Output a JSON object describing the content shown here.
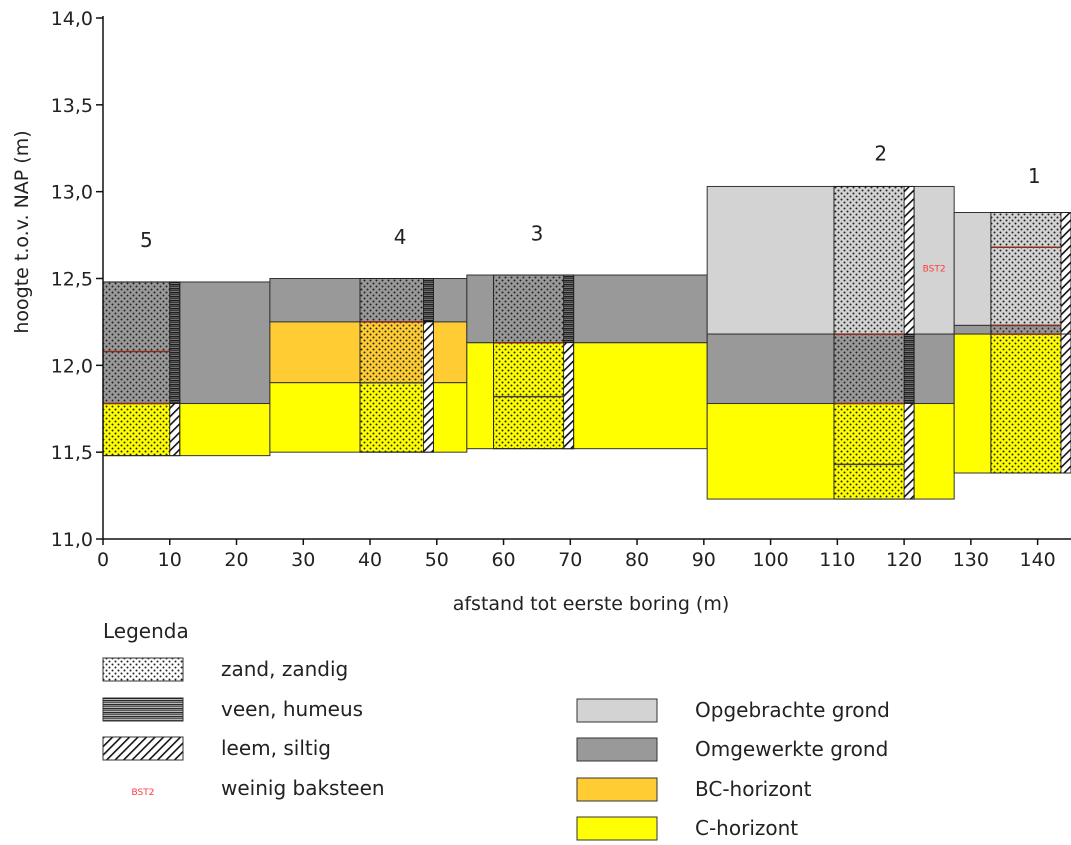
{
  "chart_data": {
    "type": "cross-section",
    "xlabel": "afstand tot eerste boring (m)",
    "ylabel": "hoogte t.o.v. NAP (m)",
    "xlim": [
      0,
      145
    ],
    "ylim": [
      11.0,
      14.0
    ],
    "x_ticks": [
      0,
      10,
      20,
      30,
      40,
      50,
      60,
      70,
      80,
      90,
      100,
      110,
      120,
      130,
      140
    ],
    "y_ticks": [
      "11,0",
      "11,5",
      "12,0",
      "12,5",
      "13,0",
      "13,5",
      "14,0"
    ],
    "y_tick_values": [
      11.0,
      11.5,
      12.0,
      12.5,
      13.0,
      13.5,
      14.0
    ],
    "colors": {
      "Opgebrachte grond": "#d3d3d3",
      "Omgewerkte grond": "#999999",
      "BC-horizont": "#ffcc33",
      "C-horizont": "#ffff00"
    },
    "units": [
      {
        "x0": 0,
        "x1": 25,
        "top": 12.48,
        "bottom": 11.78,
        "unit": "Omgewerkte grond"
      },
      {
        "x0": 0,
        "x1": 25,
        "top": 11.78,
        "bottom": 11.48,
        "unit": "C-horizont"
      },
      {
        "x0": 25,
        "x1": 54.5,
        "top": 12.5,
        "bottom": 12.25,
        "unit": "Omgewerkte grond"
      },
      {
        "x0": 25,
        "x1": 54.5,
        "top": 12.25,
        "bottom": 11.9,
        "unit": "BC-horizont"
      },
      {
        "x0": 25,
        "x1": 54.5,
        "top": 11.9,
        "bottom": 11.5,
        "unit": "C-horizont"
      },
      {
        "x0": 54.5,
        "x1": 90.5,
        "top": 12.52,
        "bottom": 12.13,
        "unit": "Omgewerkte grond"
      },
      {
        "x0": 54.5,
        "x1": 90.5,
        "top": 12.13,
        "bottom": 11.52,
        "unit": "C-horizont"
      },
      {
        "x0": 90.5,
        "x1": 127.5,
        "top": 13.03,
        "bottom": 12.18,
        "unit": "Opgebrachte grond"
      },
      {
        "x0": 90.5,
        "x1": 127.5,
        "top": 12.18,
        "bottom": 11.78,
        "unit": "Omgewerkte grond"
      },
      {
        "x0": 90.5,
        "x1": 127.5,
        "top": 11.78,
        "bottom": 11.23,
        "unit": "C-horizont"
      },
      {
        "x0": 127.5,
        "x1": 145,
        "top": 12.88,
        "bottom": 12.23,
        "unit": "Opgebrachte grond"
      },
      {
        "x0": 127.5,
        "x1": 145,
        "top": 12.23,
        "bottom": 12.18,
        "unit": "Omgewerkte grond"
      },
      {
        "x0": 127.5,
        "x1": 145,
        "top": 12.18,
        "bottom": 11.38,
        "unit": "C-horizont"
      }
    ],
    "borings": [
      {
        "label": "5",
        "x0": 0,
        "x1": 11.5,
        "top": 12.48,
        "bottom": 11.48,
        "hatch_type": "veen",
        "label_x": 6.5,
        "label_y": 12.68,
        "dividers": [
          {
            "y": 12.08,
            "color": "#8b2b1d"
          },
          {
            "y": 11.78,
            "color": "#8b2b1d"
          }
        ],
        "hatch_segments": [
          {
            "top": 12.48,
            "bottom": 11.78,
            "type": "veen"
          },
          {
            "top": 11.78,
            "bottom": 11.48,
            "type": "leem"
          }
        ]
      },
      {
        "label": "4",
        "x0": 38.5,
        "x1": 49.5,
        "top": 12.5,
        "bottom": 11.5,
        "hatch_type": "veen",
        "label_x": 44.5,
        "label_y": 12.7,
        "dividers": [
          {
            "y": 12.25,
            "color": "#8b2b1d"
          },
          {
            "y": 11.9,
            "color": "#444444"
          }
        ],
        "hatch_segments": [
          {
            "top": 12.5,
            "bottom": 12.25,
            "type": "veen"
          },
          {
            "top": 12.25,
            "bottom": 11.5,
            "type": "leem"
          }
        ]
      },
      {
        "label": "3",
        "x0": 58.5,
        "x1": 70.5,
        "top": 12.52,
        "bottom": 11.52,
        "hatch_type": "veen",
        "label_x": 65,
        "label_y": 12.72,
        "dividers": [
          {
            "y": 12.13,
            "color": "#8b2b1d"
          },
          {
            "y": 11.82,
            "color": "#444444"
          }
        ],
        "hatch_segments": [
          {
            "top": 12.52,
            "bottom": 12.13,
            "type": "veen"
          },
          {
            "top": 12.13,
            "bottom": 11.52,
            "type": "leem"
          }
        ]
      },
      {
        "label": "2",
        "x0": 109.5,
        "x1": 121.5,
        "top": 13.03,
        "bottom": 11.23,
        "hatch_type": "veen",
        "label_x": 116.5,
        "label_y": 13.18,
        "dividers": [
          {
            "y": 12.18,
            "color": "#8b2b1d"
          },
          {
            "y": 11.78,
            "color": "#8b2b1d"
          },
          {
            "y": 11.43,
            "color": "#444444"
          }
        ],
        "hatch_segments": [
          {
            "top": 13.03,
            "bottom": 12.18,
            "type": "leem"
          },
          {
            "top": 12.18,
            "bottom": 11.78,
            "type": "veen"
          },
          {
            "top": 11.78,
            "bottom": 11.23,
            "type": "leem"
          }
        ]
      },
      {
        "label": "1",
        "x0": 133,
        "x1": 145,
        "top": 12.88,
        "bottom": 11.38,
        "hatch_type": "veen",
        "label_x": 139.5,
        "label_y": 13.05,
        "dividers": [
          {
            "y": 12.68,
            "color": "#8b2b1d"
          },
          {
            "y": 12.23,
            "color": "#8b2b1d"
          },
          {
            "y": 12.18,
            "color": "#8b2b1d"
          }
        ],
        "hatch_segments": [
          {
            "top": 12.88,
            "bottom": 12.18,
            "type": "leem"
          },
          {
            "top": 12.18,
            "bottom": 11.38,
            "type": "leem"
          }
        ]
      }
    ],
    "annotations": [
      {
        "text": "BST2",
        "x": 124.5,
        "y": 12.54,
        "color": "#ff3b3b",
        "meaning": "weinig baksteen"
      }
    ]
  },
  "legend": {
    "title": "Legenda",
    "pattern_items": [
      {
        "label": "zand, zandig",
        "pattern": "zand"
      },
      {
        "label": "veen, humeus",
        "pattern": "veen"
      },
      {
        "label": "leem, siltig",
        "pattern": "leem"
      },
      {
        "label": "weinig baksteen",
        "pattern": "bst",
        "symbol_text": "BST2"
      }
    ],
    "color_items": [
      {
        "label": "Opgebrachte grond",
        "color": "#d3d3d3"
      },
      {
        "label": "Omgewerkte grond",
        "color": "#999999"
      },
      {
        "label": "BC-horizont",
        "color": "#ffcc33"
      },
      {
        "label": "C-horizont",
        "color": "#ffff00"
      }
    ]
  }
}
